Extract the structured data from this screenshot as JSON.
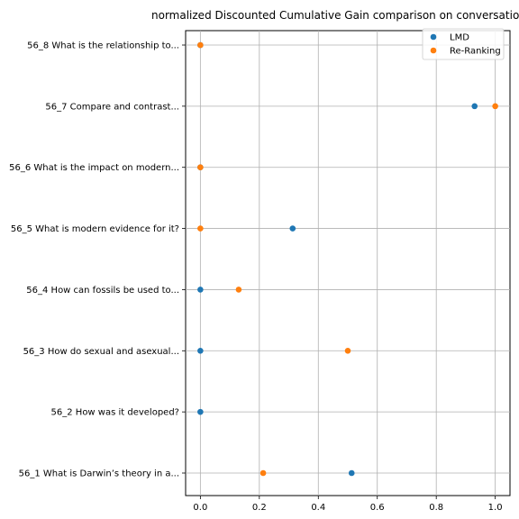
{
  "chart_data": {
    "type": "scatter",
    "title": "normalized Discounted Cumulative Gain comparison on conversation",
    "xlabel": "",
    "ylabel": "",
    "xlim": [
      -0.05,
      1.05
    ],
    "x_ticks": [
      0.0,
      0.2,
      0.4,
      0.6,
      0.8,
      1.0
    ],
    "x_tick_labels": [
      "0.0",
      "0.2",
      "0.4",
      "0.6",
      "0.8",
      "1.0"
    ],
    "grid": true,
    "legend_position": "top-right",
    "categories": [
      "56_1 What is Darwin’s theory in a...",
      "56_2 How was it developed?",
      "56_3 How do sexual and asexual...",
      "56_4 How can fossils be used to...",
      "56_5 What is modern evidence for it?",
      "56_6 What is the impact on modern...",
      "56_7 Compare and contrast...",
      "56_8 What is the relationship to..."
    ],
    "series": [
      {
        "name": "LMD",
        "color": "#1f77b4",
        "values": [
          0.513,
          0.0,
          0.0,
          0.0,
          0.313,
          0.0,
          0.93,
          0.0
        ]
      },
      {
        "name": "Re-Ranking",
        "color": "#ff7f0e",
        "values": [
          0.213,
          null,
          0.5,
          0.13,
          0.0,
          0.0,
          1.0,
          0.0
        ]
      }
    ]
  }
}
